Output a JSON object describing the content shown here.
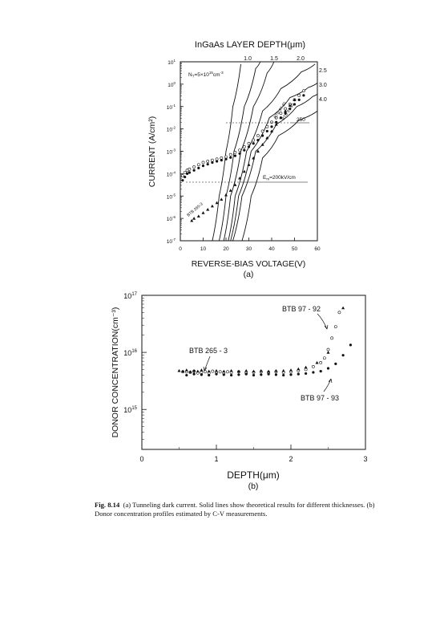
{
  "figure_number": "Fig. 8.14",
  "caption_text": "(a) Tunneling dark current. Solid lines show theoretical results for different thicknesses. (b) Donor concentration profiles estimated by C-V measurements.",
  "panel_a": {
    "label": "(a)",
    "top_title": "InGaAs LAYER DEPTH(μm)",
    "xlabel": "REVERSE-BIAS VOLTAGE(V)",
    "ylabel": "CURRENT (A/cm²)",
    "nd_note": "N",
    "nd_sub": "T",
    "nd_value": "=5×10",
    "nd_exp": "15",
    "nd_unit": "cm",
    "nd_unit_exp": "-3",
    "em_note": "E",
    "em_sub": "m",
    "em_value": "=200kV/cm",
    "label_250": "250",
    "series_label_a": "BTB 97-92",
    "series_label_b": "BTB 97-93",
    "series_label_c": "BTB 265-3",
    "x_ticks": [
      "0",
      "10",
      "20",
      "30",
      "40",
      "50",
      "60"
    ],
    "y_ticks": [
      {
        "base": "10",
        "exp": "1",
        "v": 1
      },
      {
        "base": "10",
        "exp": "0",
        "v": 0
      },
      {
        "base": "10",
        "exp": "-1",
        "v": -1
      },
      {
        "base": "10",
        "exp": "-2",
        "v": -2
      },
      {
        "base": "10",
        "exp": "-3",
        "v": -3
      },
      {
        "base": "10",
        "exp": "-4",
        "v": -4
      },
      {
        "base": "10",
        "exp": "-5",
        "v": -5
      },
      {
        "base": "10",
        "exp": "-6",
        "v": -6
      },
      {
        "base": "10",
        "exp": "-7",
        "v": -7
      }
    ],
    "depth_labels_top": [
      "1.0",
      "1.5",
      "2.0"
    ],
    "depth_labels_right": [
      "2.5",
      "3.0",
      "4.0"
    ]
  },
  "panel_b": {
    "label": "(b)",
    "xlabel": "DEPTH(μm)",
    "ylabel": "DONOR CONCENTRATION(cm⁻³)",
    "x_ticks": [
      "0",
      "1",
      "2",
      "3"
    ],
    "y_ticks": [
      {
        "base": "10",
        "exp": "17",
        "v": 17
      },
      {
        "base": "10",
        "exp": "16",
        "v": 16
      },
      {
        "base": "10",
        "exp": "15",
        "v": 15
      }
    ],
    "annot_1": "BTB 97 - 92",
    "annot_2": "BTB 265 - 3",
    "annot_3": "BTB 97 - 93"
  },
  "chart_data": [
    {
      "type": "scatter",
      "panel": "a",
      "title": "InGaAs LAYER DEPTH(μm)",
      "xlabel": "REVERSE-BIAS VOLTAGE(V)",
      "ylabel": "CURRENT (A/cm²)",
      "xlim": [
        0,
        60
      ],
      "ylim_log10": [
        -7,
        1
      ],
      "y_scale": "log",
      "series": [
        {
          "name": "BTB 97-92",
          "marker": "open-circle",
          "points": [
            [
              1,
              -4.1
            ],
            [
              2,
              -3.95
            ],
            [
              3,
              -3.85
            ],
            [
              4,
              -3.8
            ],
            [
              6,
              -3.7
            ],
            [
              8,
              -3.6
            ],
            [
              10,
              -3.5
            ],
            [
              12,
              -3.45
            ],
            [
              14,
              -3.4
            ],
            [
              16,
              -3.35
            ],
            [
              18,
              -3.3
            ],
            [
              20,
              -3.25
            ],
            [
              22,
              -3.15
            ],
            [
              24,
              -3.05
            ],
            [
              26,
              -2.95
            ],
            [
              28,
              -2.8
            ],
            [
              30,
              -2.65
            ],
            [
              32,
              -2.5
            ],
            [
              34,
              -2.3
            ],
            [
              36,
              -2.1
            ],
            [
              38,
              -1.9
            ],
            [
              40,
              -1.7
            ],
            [
              42,
              -1.5
            ],
            [
              44,
              -1.3
            ],
            [
              46,
              -1.1
            ],
            [
              48,
              -0.9
            ],
            [
              50,
              -0.7
            ],
            [
              52,
              -0.5
            ],
            [
              54,
              -0.3
            ]
          ]
        },
        {
          "name": "BTB 97-93",
          "marker": "filled-circle",
          "points": [
            [
              1,
              -4.3
            ],
            [
              2,
              -4.15
            ],
            [
              3,
              -4.0
            ],
            [
              4,
              -3.95
            ],
            [
              6,
              -3.85
            ],
            [
              8,
              -3.75
            ],
            [
              10,
              -3.65
            ],
            [
              12,
              -3.58
            ],
            [
              14,
              -3.5
            ],
            [
              16,
              -3.45
            ],
            [
              18,
              -3.4
            ],
            [
              20,
              -3.35
            ],
            [
              22,
              -3.28
            ],
            [
              24,
              -3.2
            ],
            [
              26,
              -3.1
            ],
            [
              28,
              -2.95
            ],
            [
              30,
              -2.8
            ],
            [
              32,
              -2.65
            ],
            [
              34,
              -2.5
            ],
            [
              36,
              -2.3
            ],
            [
              38,
              -2.1
            ],
            [
              40,
              -1.9
            ],
            [
              42,
              -1.7
            ],
            [
              44,
              -1.5
            ],
            [
              46,
              -1.3
            ],
            [
              48,
              -1.1
            ],
            [
              50,
              -0.9
            ],
            [
              52,
              -0.7
            ],
            [
              54,
              -0.5
            ]
          ]
        },
        {
          "name": "BTB 265-3",
          "marker": "filled-triangle",
          "points": [
            [
              5,
              -6.1
            ],
            [
              6,
              -6.0
            ],
            [
              8,
              -5.9
            ],
            [
              10,
              -5.75
            ],
            [
              12,
              -5.6
            ],
            [
              14,
              -5.45
            ],
            [
              16,
              -5.3
            ],
            [
              18,
              -5.15
            ],
            [
              20,
              -4.95
            ],
            [
              22,
              -4.75
            ],
            [
              24,
              -4.5
            ],
            [
              26,
              -4.2
            ],
            [
              28,
              -3.9
            ],
            [
              30,
              -3.6
            ],
            [
              32,
              -3.3
            ],
            [
              34,
              -3.0
            ],
            [
              36,
              -2.7
            ],
            [
              38,
              -2.4
            ],
            [
              40,
              -2.1
            ],
            [
              42,
              -1.8
            ],
            [
              44,
              -1.5
            ],
            [
              46,
              -1.2
            ],
            [
              48,
              -0.95
            ],
            [
              50,
              -0.7
            ]
          ]
        }
      ],
      "theory_curves": [
        {
          "name": "1.0",
          "points": [
            [
              14,
              -7
            ],
            [
              17,
              -5
            ],
            [
              20,
              -3
            ],
            [
              23,
              -1
            ],
            [
              26.5,
              0.9
            ]
          ]
        },
        {
          "name": "1.5",
          "points": [
            [
              17,
              -7
            ],
            [
              20,
              -5
            ],
            [
              23.5,
              -3
            ],
            [
              28,
              -1
            ],
            [
              33,
              0.7
            ],
            [
              35,
              1
            ]
          ]
        },
        {
          "name": "2.0",
          "points": [
            [
              19,
              -7
            ],
            [
              22,
              -5
            ],
            [
              26.5,
              -3
            ],
            [
              32,
              -1
            ],
            [
              38,
              0.5
            ],
            [
              41,
              1
            ]
          ]
        },
        {
          "name": "2.5",
          "points": [
            [
              21,
              -7
            ],
            [
              24,
              -5
            ],
            [
              29,
              -3
            ],
            [
              36,
              -1.2
            ],
            [
              44,
              -0.2
            ],
            [
              53,
              0.55
            ],
            [
              59,
              0.9
            ]
          ]
        },
        {
          "name": "3.0",
          "points": [
            [
              22,
              -7
            ],
            [
              25.5,
              -5
            ],
            [
              31,
              -3
            ],
            [
              39,
              -1.5
            ],
            [
              48,
              -0.6
            ],
            [
              56,
              -0.15
            ],
            [
              60,
              0.05
            ]
          ]
        },
        {
          "name": "4.0",
          "points": [
            [
              23,
              -7
            ],
            [
              27,
              -5
            ],
            [
              33,
              -3
            ],
            [
              42,
              -1.8
            ],
            [
              51,
              -1.0
            ],
            [
              58,
              -0.55
            ],
            [
              60,
              -0.45
            ]
          ]
        },
        {
          "name": "250",
          "points": [
            [
              27,
              -7
            ],
            [
              31,
              -5
            ],
            [
              36,
              -3.3
            ],
            [
              43,
              -2.3
            ],
            [
              52,
              -1.6
            ],
            [
              60,
              -1.2
            ]
          ]
        }
      ]
    },
    {
      "type": "scatter",
      "panel": "b",
      "xlabel": "DEPTH(μm)",
      "ylabel": "DONOR CONCENTRATION(cm⁻³)",
      "xlim": [
        0,
        3
      ],
      "ylim_log10": [
        14.3,
        17
      ],
      "y_scale": "log",
      "series": [
        {
          "name": "BTB 97 - 92",
          "marker": "open-circle",
          "points": [
            [
              0.55,
              15.66
            ],
            [
              0.6,
              15.66
            ],
            [
              0.65,
              15.65
            ],
            [
              0.7,
              15.67
            ],
            [
              0.75,
              15.64
            ],
            [
              0.8,
              15.65
            ],
            [
              0.85,
              15.66
            ],
            [
              0.9,
              15.64
            ],
            [
              0.95,
              15.67
            ],
            [
              1.0,
              15.65
            ],
            [
              1.05,
              15.66
            ],
            [
              1.1,
              15.64
            ],
            [
              1.15,
              15.66
            ],
            [
              1.2,
              15.65
            ],
            [
              1.3,
              15.66
            ],
            [
              1.4,
              15.64
            ],
            [
              1.5,
              15.65
            ],
            [
              1.6,
              15.66
            ],
            [
              1.7,
              15.65
            ],
            [
              1.8,
              15.66
            ],
            [
              1.9,
              15.65
            ],
            [
              2.0,
              15.66
            ],
            [
              2.1,
              15.68
            ],
            [
              2.2,
              15.7
            ],
            [
              2.3,
              15.75
            ],
            [
              2.4,
              15.82
            ],
            [
              2.45,
              15.9
            ],
            [
              2.5,
              16.05
            ],
            [
              2.55,
              16.25
            ],
            [
              2.6,
              16.45
            ],
            [
              2.65,
              16.7
            ]
          ]
        },
        {
          "name": "BTB 97 - 93",
          "marker": "filled-circle",
          "points": [
            [
              0.6,
              15.6
            ],
            [
              0.7,
              15.62
            ],
            [
              0.8,
              15.61
            ],
            [
              0.9,
              15.6
            ],
            [
              1.0,
              15.62
            ],
            [
              1.1,
              15.61
            ],
            [
              1.2,
              15.6
            ],
            [
              1.3,
              15.61
            ],
            [
              1.4,
              15.62
            ],
            [
              1.5,
              15.6
            ],
            [
              1.6,
              15.61
            ],
            [
              1.7,
              15.62
            ],
            [
              1.8,
              15.61
            ],
            [
              1.9,
              15.6
            ],
            [
              2.0,
              15.61
            ],
            [
              2.1,
              15.62
            ],
            [
              2.2,
              15.63
            ],
            [
              2.3,
              15.65
            ],
            [
              2.4,
              15.67
            ],
            [
              2.5,
              15.72
            ],
            [
              2.6,
              15.8
            ],
            [
              2.7,
              15.95
            ],
            [
              2.8,
              16.13
            ]
          ]
        },
        {
          "name": "BTB 265 - 3",
          "marker": "filled-triangle",
          "points": [
            [
              0.5,
              15.68
            ],
            [
              0.55,
              15.67
            ],
            [
              0.6,
              15.69
            ],
            [
              0.65,
              15.66
            ],
            [
              0.7,
              15.68
            ],
            [
              0.75,
              15.67
            ],
            [
              0.8,
              15.69
            ],
            [
              0.9,
              15.67
            ],
            [
              1.0,
              15.68
            ],
            [
              1.1,
              15.67
            ],
            [
              1.2,
              15.68
            ],
            [
              1.3,
              15.67
            ],
            [
              1.4,
              15.68
            ],
            [
              1.5,
              15.67
            ],
            [
              1.6,
              15.68
            ],
            [
              1.7,
              15.67
            ],
            [
              1.8,
              15.68
            ],
            [
              1.9,
              15.68
            ],
            [
              2.0,
              15.69
            ],
            [
              2.1,
              15.71
            ],
            [
              2.2,
              15.74
            ],
            [
              2.35,
              15.82
            ],
            [
              2.5,
              16.0
            ],
            [
              2.7,
              16.78
            ]
          ]
        }
      ]
    }
  ]
}
